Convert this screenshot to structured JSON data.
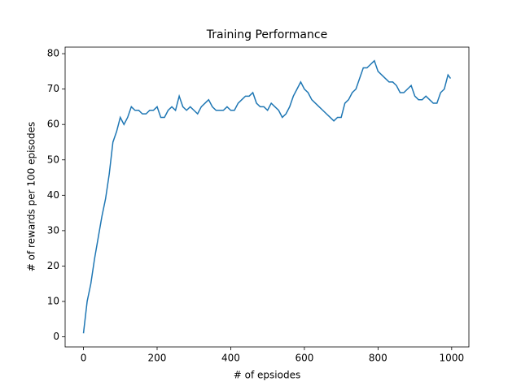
{
  "chart_data": {
    "type": "line",
    "title": "Training Performance",
    "x_label": "# of epsiodes",
    "y_label": "# of rewards per 100 episodes",
    "x": [
      0,
      10,
      20,
      30,
      40,
      50,
      60,
      70,
      80,
      90,
      100,
      110,
      120,
      130,
      140,
      150,
      160,
      170,
      180,
      190,
      200,
      210,
      220,
      230,
      240,
      250,
      260,
      270,
      280,
      290,
      300,
      310,
      320,
      330,
      340,
      350,
      360,
      370,
      380,
      390,
      400,
      410,
      420,
      430,
      440,
      450,
      460,
      470,
      480,
      490,
      500,
      510,
      520,
      530,
      540,
      550,
      560,
      570,
      580,
      590,
      600,
      610,
      620,
      630,
      640,
      650,
      660,
      670,
      680,
      690,
      700,
      710,
      720,
      730,
      740,
      750,
      760,
      770,
      780,
      790,
      800,
      810,
      820,
      830,
      840,
      850,
      860,
      870,
      880,
      890,
      900,
      910,
      920,
      930,
      940,
      950,
      960,
      970,
      980,
      990,
      997
    ],
    "series": [
      {
        "color": "#1f77b4",
        "values": [
          1,
          10,
          15,
          22,
          28,
          34,
          39,
          46,
          55,
          58,
          62,
          60,
          62,
          65,
          64,
          64,
          63,
          63,
          64,
          64,
          65,
          62,
          62,
          64,
          65,
          64,
          68,
          65,
          64,
          65,
          64,
          63,
          65,
          66,
          67,
          65,
          64,
          64,
          64,
          65,
          64,
          64,
          66,
          67,
          68,
          68,
          69,
          66,
          65,
          65,
          64,
          66,
          65,
          64,
          62,
          63,
          65,
          68,
          70,
          72,
          70,
          69,
          67,
          66,
          65,
          64,
          63,
          62,
          61,
          62,
          62,
          66,
          67,
          69,
          70,
          73,
          76,
          76,
          77,
          78,
          75,
          74,
          73,
          72,
          72,
          71,
          69,
          69,
          70,
          71,
          68,
          67,
          67,
          68,
          67,
          66,
          66,
          69,
          70,
          74,
          73
        ]
      }
    ],
    "xlim": [
      -49.8,
      1046.8
    ],
    "ylim": [
      -2.85,
      81.85
    ],
    "xticks": [
      0,
      200,
      400,
      600,
      800,
      1000
    ],
    "yticks": [
      0,
      10,
      20,
      30,
      40,
      50,
      60,
      70,
      80
    ]
  }
}
